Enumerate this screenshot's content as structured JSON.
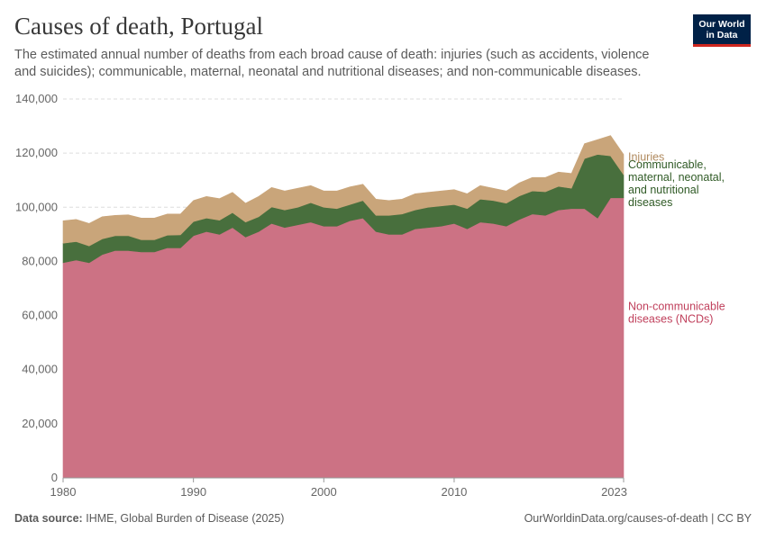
{
  "header": {
    "title": "Causes of death, Portugal",
    "subtitle": "The estimated annual number of deaths from each broad cause of death: injuries (such as accidents, violence and suicides); communicable, maternal, neonatal and nutritional diseases; and non-communicable diseases.",
    "logo_line1": "Our World",
    "logo_line2": "in Data"
  },
  "footer": {
    "source_label": "Data source:",
    "source_text": "IHME, Global Burden of Disease (2025)",
    "url_text": "OurWorldinData.org/causes-of-death | CC BY"
  },
  "colors": {
    "ncd": "#cc7284",
    "communicable": "#486f3d",
    "injuries": "#c9a57a",
    "ncd_label": "#c0405c",
    "communicable_label": "#2f5a25",
    "injuries_label": "#b08a5e",
    "grid": "#dddddd",
    "axis_text": "#666666"
  },
  "chart_data": {
    "type": "area",
    "stacked": true,
    "x_tick_labels": [
      "1980",
      "1990",
      "2000",
      "2010",
      "2023"
    ],
    "y_tick_labels": [
      "0",
      "20,000",
      "40,000",
      "60,000",
      "80,000",
      "100,000",
      "120,000",
      "140,000"
    ],
    "ylim": [
      0,
      140000
    ],
    "xlim": [
      1980,
      2023
    ],
    "x": [
      1980,
      1981,
      1982,
      1983,
      1984,
      1985,
      1986,
      1987,
      1988,
      1989,
      1990,
      1991,
      1992,
      1993,
      1994,
      1995,
      1996,
      1997,
      1998,
      1999,
      2000,
      2001,
      2002,
      2003,
      2004,
      2005,
      2006,
      2007,
      2008,
      2009,
      2010,
      2011,
      2012,
      2013,
      2014,
      2015,
      2016,
      2017,
      2018,
      2019,
      2020,
      2021,
      2022,
      2023
    ],
    "series": [
      {
        "name": "Non-communicable diseases (NCDs)",
        "label_lines": [
          "Non-communicable",
          "diseases (NCDs)"
        ],
        "values": [
          79500,
          80500,
          79500,
          82500,
          84000,
          84000,
          83500,
          83500,
          85000,
          85000,
          89500,
          91000,
          90000,
          92500,
          89000,
          91000,
          94000,
          92500,
          93500,
          94500,
          93000,
          93000,
          95000,
          96000,
          91000,
          90000,
          90000,
          92000,
          92500,
          93000,
          94000,
          92000,
          94500,
          94000,
          93000,
          95500,
          97500,
          97000,
          99000,
          99500,
          99500,
          96000,
          103500,
          103500
        ]
      },
      {
        "name": "Communicable, maternal, neonatal, and nutritional diseases",
        "label_lines": [
          "Communicable,",
          "maternal, neonatal,",
          "and nutritional",
          "diseases"
        ],
        "values": [
          7200,
          6800,
          6200,
          5800,
          5500,
          5500,
          4500,
          4500,
          4700,
          4800,
          5200,
          5000,
          5200,
          5500,
          5500,
          5500,
          6100,
          6500,
          6500,
          7200,
          7000,
          6500,
          6000,
          6500,
          6000,
          7000,
          7500,
          7000,
          7500,
          7500,
          7000,
          7500,
          8500,
          8500,
          8500,
          8700,
          8500,
          8700,
          8700,
          7500,
          18500,
          23500,
          15500,
          8500
        ]
      },
      {
        "name": "Injuries",
        "label_lines": [
          "Injuries"
        ],
        "values": [
          8300,
          8200,
          8300,
          8200,
          7500,
          7700,
          8000,
          8000,
          7800,
          7700,
          7800,
          8000,
          8000,
          7500,
          7000,
          7500,
          7200,
          7000,
          7000,
          6300,
          6000,
          6500,
          6500,
          6000,
          6000,
          5500,
          5500,
          6000,
          5500,
          5500,
          5500,
          5500,
          5000,
          4500,
          4500,
          4800,
          5000,
          5300,
          5300,
          5500,
          5500,
          5500,
          7500,
          7500
        ]
      }
    ]
  }
}
